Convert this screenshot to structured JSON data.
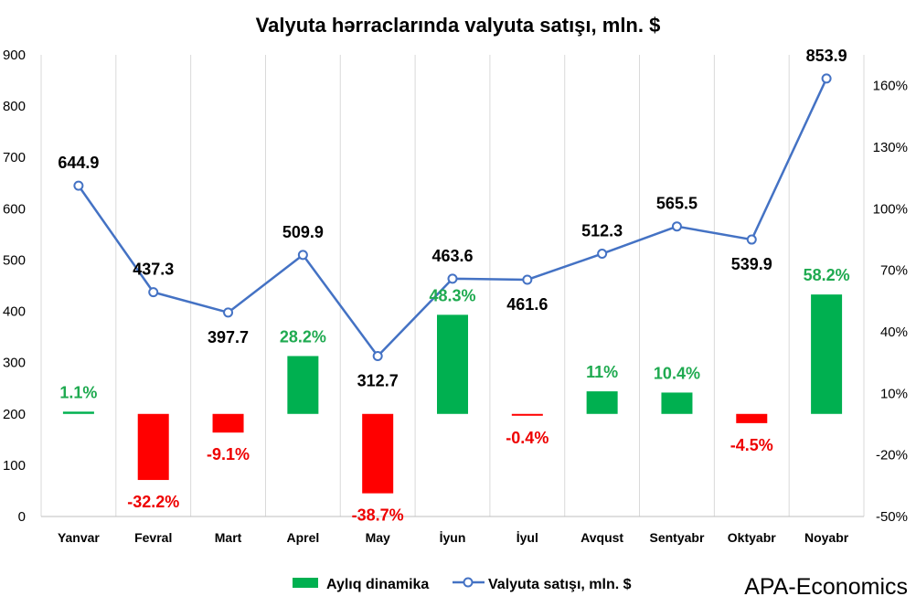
{
  "chart_data": {
    "type": "bar+line",
    "title": "Valyuta hərraclarında valyuta satışı, mln. $",
    "categories": [
      "Yanvar",
      "Fevral",
      "Mart",
      "Aprel",
      "May",
      "İyun",
      "İyul",
      "Avqust",
      "Sentyabr",
      "Oktyabr",
      "Noyabr"
    ],
    "series": [
      {
        "name": "Aylıq dinamika",
        "type": "bar",
        "axis": "right",
        "values": [
          1.1,
          -32.2,
          -9.1,
          28.2,
          -38.7,
          48.3,
          -0.4,
          11,
          10.4,
          -4.5,
          58.2
        ],
        "labels": [
          "1.1%",
          "-32.2%",
          "-9.1%",
          "28.2%",
          "-38.7%",
          "48.3%",
          "-0.4%",
          "11%",
          "10.4%",
          "-4.5%",
          "58.2%"
        ],
        "color_positive": "#00b050",
        "color_negative": "#ff0000"
      },
      {
        "name": "Valyuta satışı, mln. $",
        "type": "line",
        "axis": "left",
        "values": [
          644.9,
          437.3,
          397.7,
          509.9,
          312.7,
          463.6,
          461.6,
          512.3,
          565.5,
          539.9,
          853.9
        ],
        "labels": [
          "644.9",
          "437.3",
          "397.7",
          "509.9",
          "312.7",
          "463.6",
          "461.6",
          "512.3",
          "565.5",
          "539.9",
          "853.9"
        ],
        "color": "#4472c4"
      }
    ],
    "y_left": {
      "min": 0,
      "max": 900,
      "ticks": [
        "0",
        "100",
        "200",
        "300",
        "400",
        "500",
        "600",
        "700",
        "800",
        "900"
      ]
    },
    "y_right": {
      "min": -50,
      "max": 175,
      "ticks": [
        "-50%",
        "-20%",
        "10%",
        "40%",
        "70%",
        "100%",
        "130%",
        "160%"
      ]
    },
    "grid": "vertical",
    "legend_position": "bottom"
  },
  "legend": {
    "bar_label": "Aylıq dinamika",
    "line_label": "Valyuta satışı, mln. $"
  },
  "brand": "APA-Economics"
}
